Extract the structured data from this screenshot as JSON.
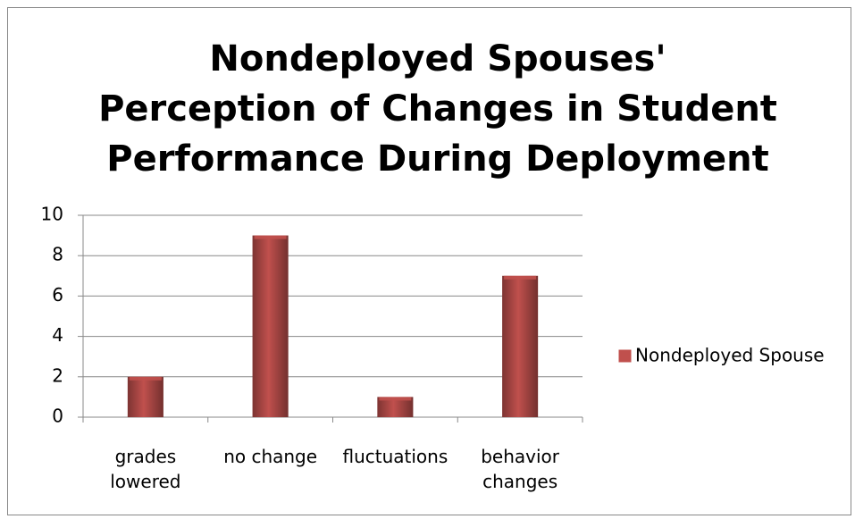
{
  "chart_data": {
    "type": "bar",
    "title": "Nondeployed Spouses' Perception of Changes in Student Performance During Deployment",
    "categories": [
      "grades lowered",
      "no change",
      "fluctuations",
      "behavior changes"
    ],
    "series": [
      {
        "name": "Nondeployed Spouse",
        "color": "#c0504d",
        "values": [
          2,
          9,
          1,
          7
        ]
      }
    ],
    "ylim": [
      0,
      10
    ],
    "yticks": [
      0,
      2,
      4,
      6,
      8,
      10
    ],
    "grid": true,
    "legend": "right"
  }
}
